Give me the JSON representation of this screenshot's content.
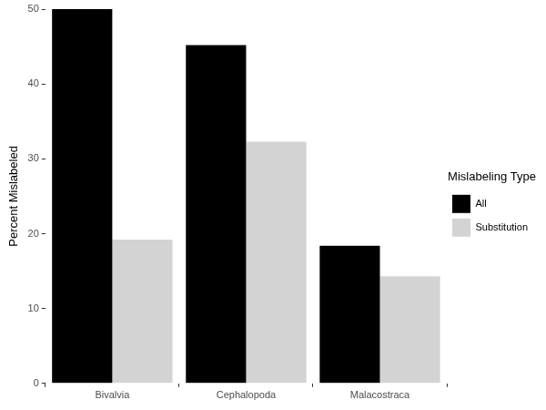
{
  "chart_data": {
    "type": "bar",
    "categories": [
      "Bivalvia",
      "Cephalopoda",
      "Malacostraca"
    ],
    "series": [
      {
        "name": "All",
        "color": "#000000",
        "values": [
          50,
          45.2,
          18.4
        ]
      },
      {
        "name": "Substitution",
        "color": "#d3d3d3",
        "values": [
          19.2,
          32.3,
          14.3
        ]
      }
    ],
    "ylabel": "Percent Mislabeled",
    "legend_title": "Mislabeling Type",
    "ylim": [
      0,
      50
    ],
    "yticks": [
      0,
      10,
      20,
      30,
      40,
      50
    ],
    "grid": false,
    "legend": "right"
  }
}
